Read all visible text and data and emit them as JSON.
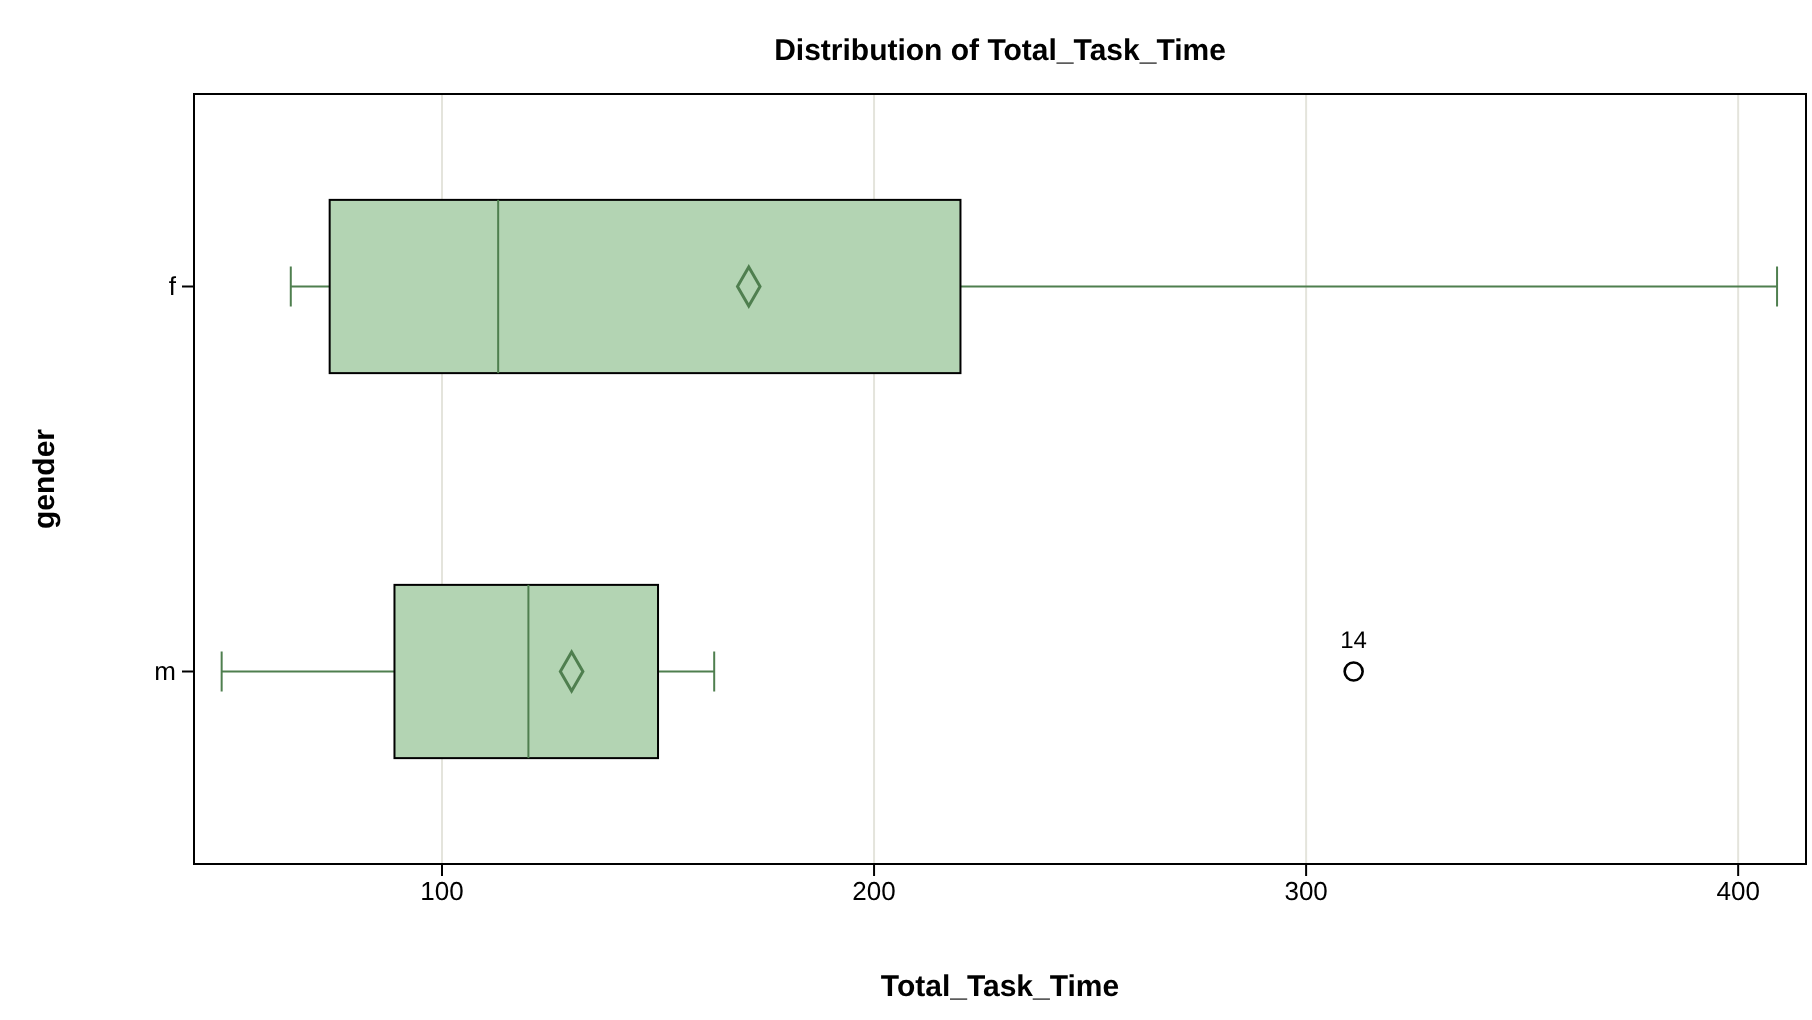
{
  "chart_data": {
    "type": "box",
    "title": "Distribution of Total_Task_Time",
    "xlabel": "Total_Task_Time",
    "ylabel": "gender",
    "orientation": "horizontal",
    "categories": [
      "f",
      "m"
    ],
    "boxes": [
      {
        "low": 65,
        "q1": 74,
        "median": 113,
        "q3": 220,
        "high": 409,
        "mean": 171
      },
      {
        "low": 49,
        "q1": 89,
        "median": 120,
        "q3": 150,
        "high": 163,
        "mean": 130,
        "outliers": [
          311
        ]
      }
    ],
    "color": "#b3d4b3",
    "xlim": [
      42.6,
      415.7
    ],
    "xticks": [
      100,
      200,
      300,
      400
    ],
    "grid": "x",
    "marker": "diamond",
    "annotations": [
      "14"
    ]
  }
}
